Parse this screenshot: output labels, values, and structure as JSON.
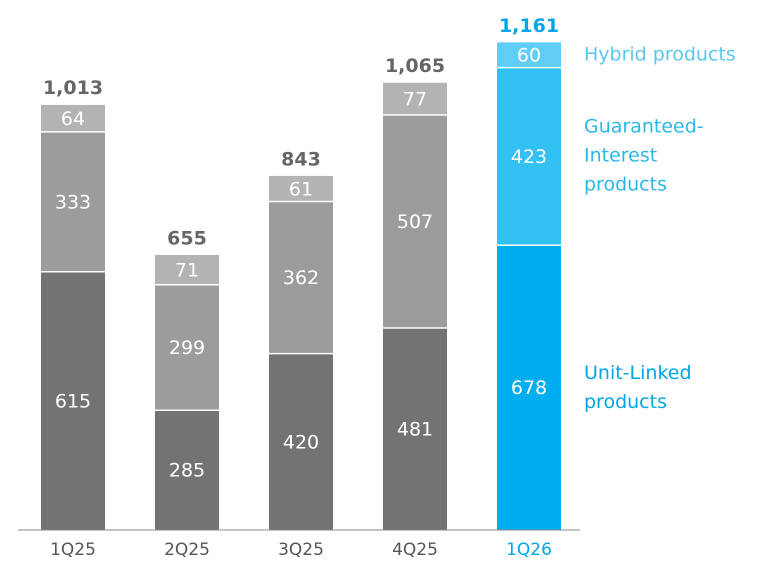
{
  "chart_data": {
    "type": "stacked_bar",
    "categories": [
      "1Q25",
      "2Q25",
      "3Q25",
      "4Q25",
      "1Q26"
    ],
    "series": [
      {
        "name": "Unit-Linked products",
        "color": "#737373",
        "highlight_color": "#00aeef",
        "legend_color": "#00a6e6",
        "values": [
          615,
          285,
          420,
          481,
          678
        ]
      },
      {
        "name": "Guaranteed-Interest products",
        "color": "#9c9c9c",
        "highlight_color": "#33c1f3",
        "legend_color": "#2bb7ea",
        "values": [
          333,
          299,
          362,
          507,
          423
        ]
      },
      {
        "name": "Hybrid products",
        "color": "#b3b3b3",
        "highlight_color": "#5fcdf5",
        "legend_color": "#5ac7ef",
        "values": [
          64,
          71,
          61,
          77,
          60
        ]
      }
    ],
    "totals": [
      1013,
      655,
      843,
      1065,
      1161
    ],
    "total_labels": [
      "1,013",
      "655",
      "843",
      "1,065",
      "1,161"
    ],
    "highlight_index": 4,
    "ylim": [
      0,
      1200
    ]
  }
}
